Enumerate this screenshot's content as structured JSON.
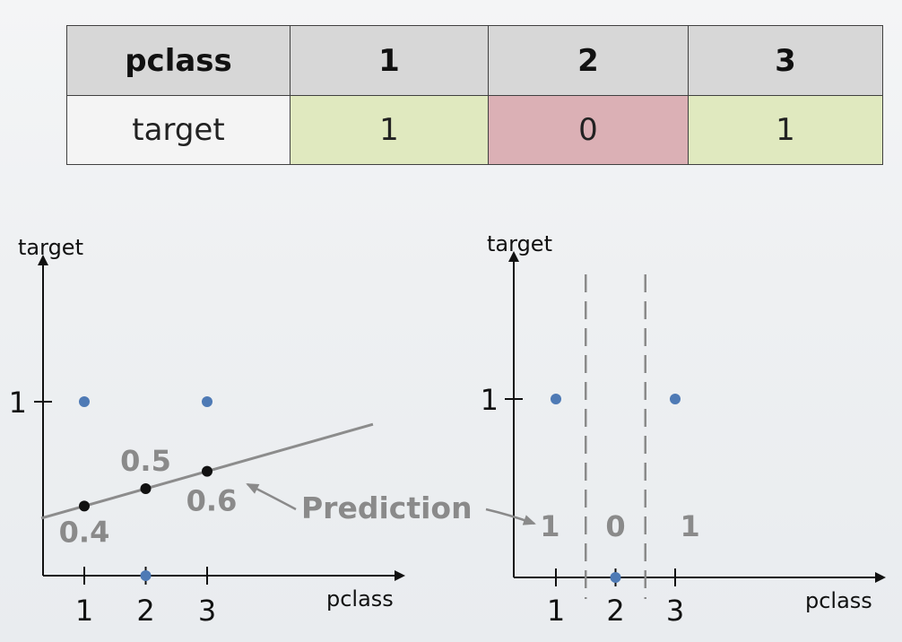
{
  "table": {
    "header": [
      "pclass",
      "1",
      "2",
      "3"
    ],
    "row": [
      "target",
      "1",
      "0",
      "1"
    ],
    "cell_colors": {
      "positive": "#e0e9bf",
      "negative": "#dbb0b5"
    }
  },
  "annotation": {
    "text": "Prediction",
    "color": "#8a8a8a"
  },
  "chart_data": [
    {
      "type": "scatter",
      "xlabel": "pclass",
      "ylabel": "target",
      "x_ticks": [
        "1",
        "2",
        "3"
      ],
      "y_ticks": [
        "1"
      ],
      "points": [
        {
          "x": 1,
          "y": 1
        },
        {
          "x": 2,
          "y": 0
        },
        {
          "x": 3,
          "y": 1
        }
      ],
      "point_color": "#4e7ab5",
      "regression_line": {
        "color": "#8c8c8c"
      },
      "predictions": [
        {
          "x": 1,
          "y": 0.4,
          "label": "0.4"
        },
        {
          "x": 2,
          "y": 0.5,
          "label": "0.5"
        },
        {
          "x": 3,
          "y": 0.6,
          "label": "0.6"
        }
      ]
    },
    {
      "type": "scatter",
      "xlabel": "pclass",
      "ylabel": "target",
      "x_ticks": [
        "1",
        "2",
        "3"
      ],
      "y_ticks": [
        "1"
      ],
      "points": [
        {
          "x": 1,
          "y": 1
        },
        {
          "x": 2,
          "y": 0
        },
        {
          "x": 3,
          "y": 1
        }
      ],
      "point_color": "#4e7ab5",
      "split_lines_x": [
        1.5,
        2.5
      ],
      "region_predictions": [
        "1",
        "0",
        "1"
      ]
    }
  ]
}
